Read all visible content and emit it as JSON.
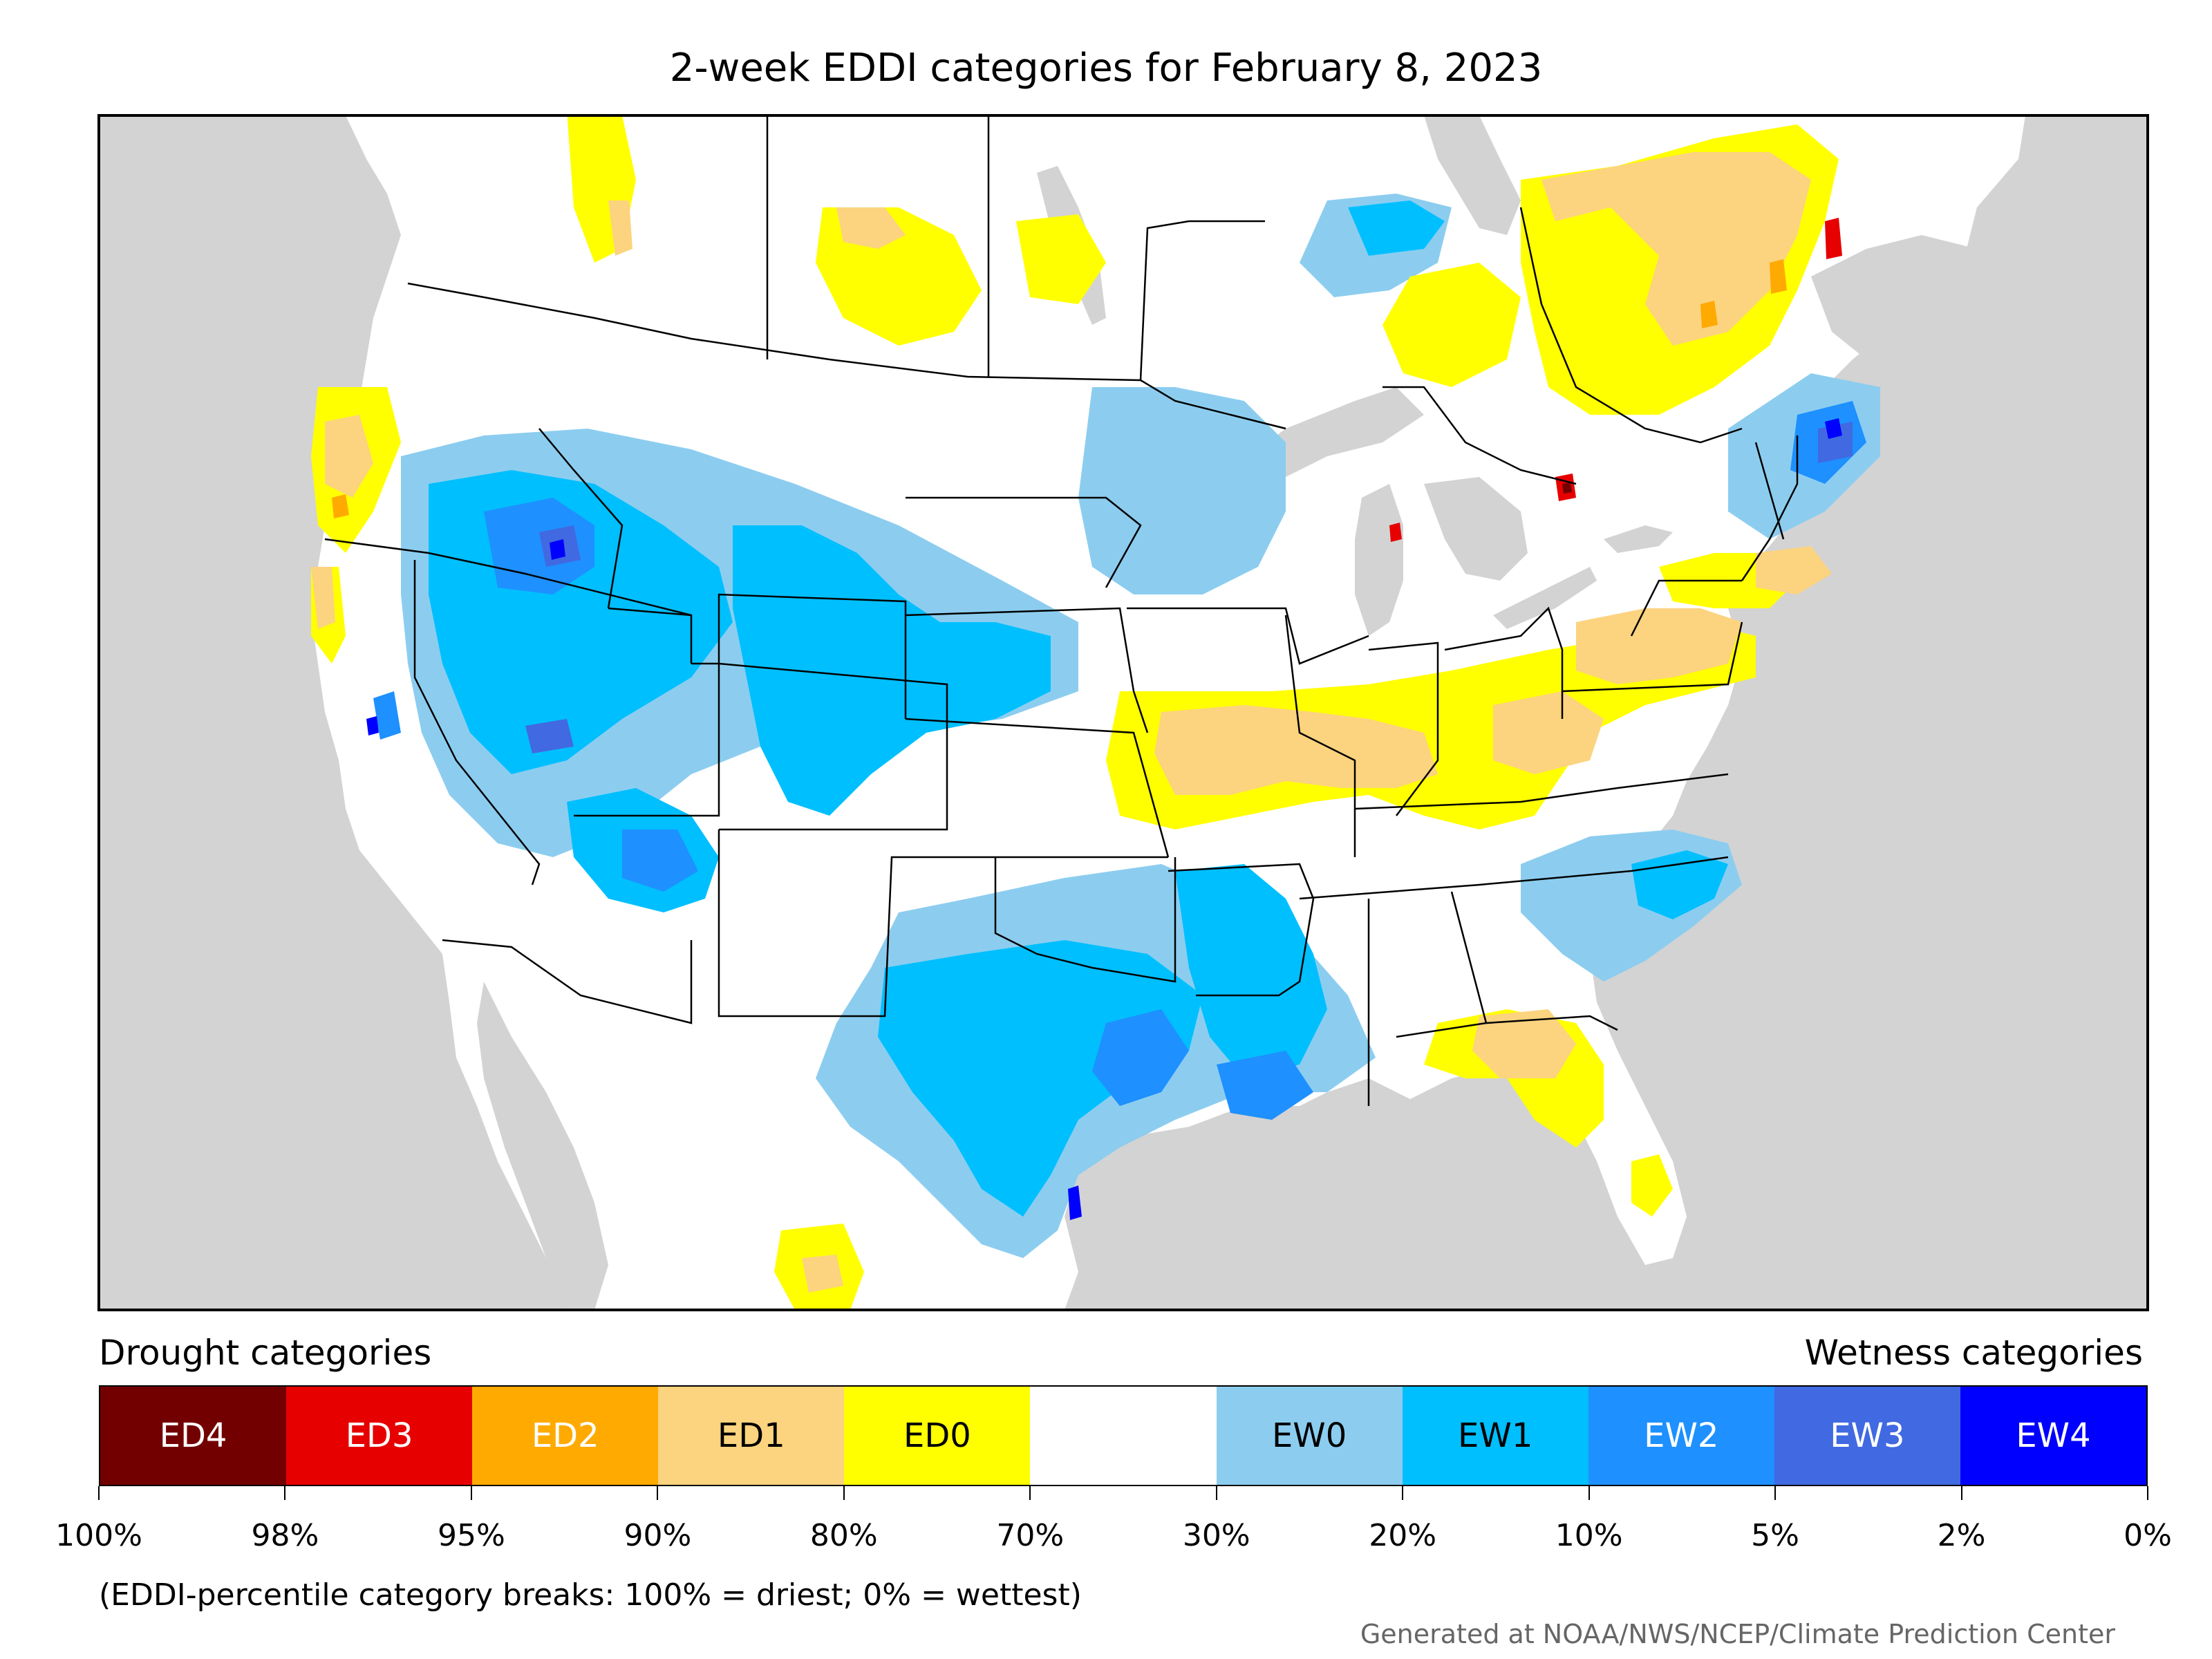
{
  "title": "2-week EDDI categories for February 8, 2023",
  "legend": {
    "drought_label": "Drought categories",
    "wetness_label": "Wetness categories",
    "categories": [
      {
        "label": "ED4",
        "color": "#730000",
        "text_color": "#ffffff"
      },
      {
        "label": "ED3",
        "color": "#e60000",
        "text_color": "#ffffff"
      },
      {
        "label": "ED2",
        "color": "#ffaa00",
        "text_color": "#ffffff"
      },
      {
        "label": "ED1",
        "color": "#fcd37f",
        "text_color": "#000000"
      },
      {
        "label": "ED0",
        "color": "#ffff00",
        "text_color": "#000000"
      },
      {
        "label": "",
        "color": "#ffffff",
        "text_color": "#000000"
      },
      {
        "label": "EW0",
        "color": "#8ccdef",
        "text_color": "#000000"
      },
      {
        "label": "EW1",
        "color": "#00bfff",
        "text_color": "#000000"
      },
      {
        "label": "EW2",
        "color": "#1e90ff",
        "text_color": "#ffffff"
      },
      {
        "label": "EW3",
        "color": "#4169e1",
        "text_color": "#ffffff"
      },
      {
        "label": "EW4",
        "color": "#0000ff",
        "text_color": "#ffffff"
      }
    ],
    "breaks": [
      "100%",
      "98%",
      "95%",
      "90%",
      "80%",
      "70%",
      "30%",
      "20%",
      "10%",
      "5%",
      "2%",
      "0%"
    ]
  },
  "footnote": "(EDDI-percentile category breaks: 100% = driest; 0% = wettest)",
  "credit": "Generated at NOAA/NWS/NCEP/Climate Prediction Center",
  "colors": {
    "water": "#d3d3d3",
    "land": "#ffffff",
    "boundary": "#000000"
  }
}
